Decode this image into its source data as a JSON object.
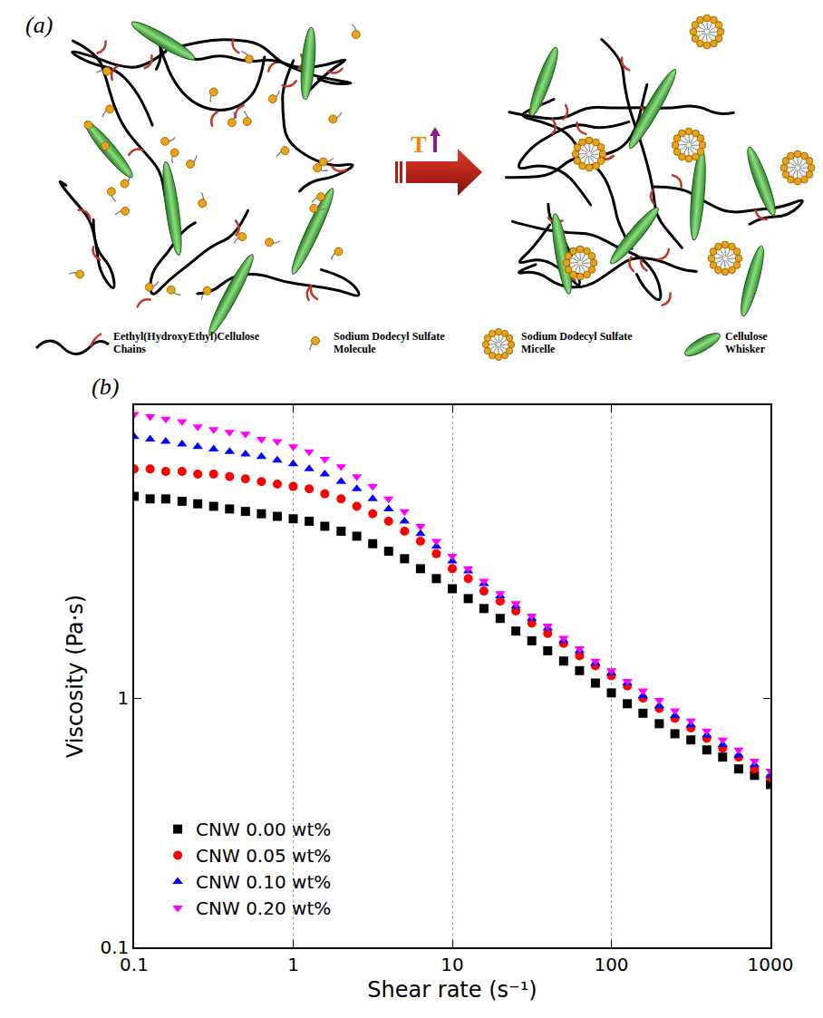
{
  "diagram": {
    "label": "(a)",
    "arrow_label": "T",
    "legend": [
      {
        "text": "Eethyl(HydroxyEthyl)Cellulose Chains"
      },
      {
        "text": "Sodium Dodecyl Sulfate Molecule"
      },
      {
        "text": "Sodium Dodecyl Sulfate Micelle"
      },
      {
        "text": "Cellulose Whisker"
      }
    ]
  },
  "chart_data": {
    "type": "scatter",
    "annotations": [
      {
        "text": "(b)"
      }
    ],
    "x_label": "Shear rate (s⁻¹)",
    "y_label": "Viscosity (Pa·s)",
    "x": [
      0.1,
      0.126,
      0.158,
      0.2,
      0.251,
      0.316,
      0.398,
      0.501,
      0.631,
      0.794,
      1,
      1.26,
      1.58,
      2,
      2.51,
      3.16,
      3.98,
      5.01,
      6.31,
      7.94,
      10,
      12.6,
      15.8,
      20,
      25.1,
      31.6,
      39.8,
      50.1,
      63.1,
      79.4,
      100,
      126,
      158,
      200,
      251,
      316,
      398,
      501,
      631,
      794,
      1000
    ],
    "series": [
      {
        "name": "CNW 0.00 wt%",
        "color": "#000000",
        "marker": "square",
        "values": [
          6.46,
          6.31,
          6.31,
          6.17,
          6.03,
          5.89,
          5.75,
          5.62,
          5.5,
          5.37,
          5.25,
          5.13,
          4.9,
          4.68,
          4.47,
          4.17,
          3.89,
          3.63,
          3.31,
          3.02,
          2.75,
          2.51,
          2.29,
          2.09,
          1.86,
          1.7,
          1.55,
          1.41,
          1.29,
          1.15,
          1.05,
          0.95,
          0.87,
          0.79,
          0.72,
          0.68,
          0.62,
          0.58,
          0.52,
          0.49,
          0.45
        ]
      },
      {
        "name": "CNW 0.05 wt%",
        "color": "#ff0000",
        "marker": "circle",
        "values": [
          8.32,
          8.32,
          8.13,
          8.13,
          7.94,
          7.94,
          7.76,
          7.59,
          7.41,
          7.24,
          7.08,
          6.92,
          6.61,
          6.31,
          5.89,
          5.5,
          5.13,
          4.68,
          4.27,
          3.8,
          3.31,
          3.02,
          2.69,
          2.45,
          2.24,
          2.0,
          1.82,
          1.66,
          1.48,
          1.35,
          1.23,
          1.12,
          1.0,
          0.91,
          0.83,
          0.76,
          0.69,
          0.63,
          0.58,
          0.52,
          0.48
        ]
      },
      {
        "name": "CNW 0.10 wt%",
        "color": "#0000ff",
        "marker": "triangle-up",
        "values": [
          11.2,
          10.96,
          10.72,
          10.47,
          10.23,
          10.0,
          9.77,
          9.55,
          9.33,
          9.02,
          8.71,
          8.32,
          7.94,
          7.41,
          6.92,
          6.31,
          5.75,
          5.13,
          4.57,
          4.07,
          3.55,
          3.24,
          2.88,
          2.57,
          2.34,
          2.09,
          1.91,
          1.7,
          1.55,
          1.38,
          1.26,
          1.15,
          1.02,
          0.93,
          0.85,
          0.78,
          0.71,
          0.65,
          0.59,
          0.54,
          0.49
        ]
      },
      {
        "name": "CNW 0.20 wt%",
        "color": "#ff00ff",
        "marker": "triangle-down",
        "values": [
          13.8,
          13.5,
          13.2,
          12.9,
          12.3,
          12.0,
          11.7,
          11.5,
          10.96,
          10.72,
          10.23,
          9.77,
          9.12,
          8.51,
          7.76,
          7.08,
          6.31,
          5.62,
          4.9,
          4.27,
          3.72,
          3.31,
          2.95,
          2.63,
          2.4,
          2.14,
          1.95,
          1.74,
          1.58,
          1.41,
          1.29,
          1.17,
          1.07,
          0.98,
          0.89,
          0.81,
          0.74,
          0.68,
          0.62,
          0.56,
          0.51
        ]
      }
    ],
    "xlim": [
      0.1,
      1000
    ],
    "ylim": [
      0.1,
      15
    ],
    "xticks": [
      0.1,
      1,
      10,
      100,
      1000
    ],
    "yticks": [
      0.1,
      1
    ],
    "log": true,
    "grid": "x",
    "legend": "lower left"
  }
}
